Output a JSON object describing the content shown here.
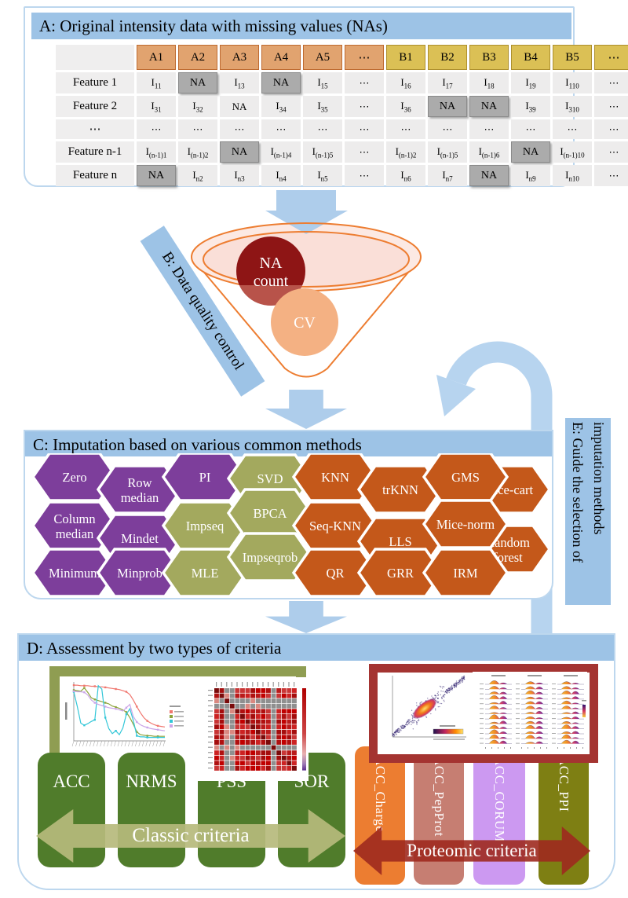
{
  "colors": {
    "banner_blue": "#9DC3E6",
    "box_border": "#BDD7EE",
    "block_arrow": "#AECDEB",
    "curve_arrow": "#B7D4EF",
    "funnel_outline": "#ED7D31",
    "funnel_fill": "#FADFD8",
    "na_circle": "#8E1515",
    "cv_circle": "#F4B183",
    "hex_purple": "#7D3E9B",
    "hex_olive": "#A3A95E",
    "hex_orange": "#C4581A",
    "header_a": "#E1A36F",
    "header_b": "#DBC055",
    "na_cell": "#ABABAB",
    "classic_box": "#507C2B",
    "classic_arrow": "#B6BA7C",
    "classic_frame": "#8F9D52",
    "proteomic_frame": "#A43431",
    "proteomic_arrow": "#9E2A1F"
  },
  "section_a": {
    "title": "A: Original intensity data with missing values (NAs)",
    "table": {
      "col_headers_a": [
        "A1",
        "A2",
        "A3",
        "A4",
        "A5",
        "⋯"
      ],
      "col_headers_b": [
        "B1",
        "B2",
        "B3",
        "B4",
        "B5",
        "⋯"
      ],
      "rows": [
        {
          "label": "Feature 1",
          "cells": [
            "I^11",
            "NA*",
            "I^13",
            "NA*",
            "I^15",
            "⋯",
            "I^16",
            "I^17",
            "I^18",
            "I^19",
            "I^110",
            "⋯"
          ]
        },
        {
          "label": "Feature 2",
          "cells": [
            "I^31",
            "I^32",
            "NA",
            "I^34",
            "I^35",
            "⋯",
            "I^36",
            "NA*",
            "NA*",
            "I^39",
            "I^310",
            "⋯"
          ]
        },
        {
          "label": "⋯",
          "cells": [
            "⋯",
            "⋯",
            "⋯",
            "⋯",
            "⋯",
            "⋯",
            "⋯",
            "⋯",
            "⋯",
            "⋯",
            "⋯",
            "⋯"
          ]
        },
        {
          "label": "Feature n-1",
          "cells": [
            "I^(n-1)1",
            "I^(n-1)2",
            "NA*",
            "I^(n-1)4",
            "I^(n-1)5",
            "⋯",
            "I^(n-1)2",
            "I^(n-1)5",
            "I^(n-1)6",
            "NA*",
            "I^(n-1)10",
            "⋯"
          ]
        },
        {
          "label": "Feature n",
          "cells": [
            "NA*",
            "I^n2",
            "I^n3",
            "I^n4",
            "I^n5",
            "⋯",
            "I^n6",
            "I^n7",
            "NA*",
            "I^n9",
            "I^n10",
            "⋯"
          ]
        }
      ]
    }
  },
  "section_b": {
    "label": "B: Data quality control",
    "na_lines": [
      "NA",
      "count"
    ],
    "cv_label": "CV"
  },
  "section_c": {
    "title": "C: Imputation based on various common methods",
    "hexagons": [
      {
        "label": "Zero",
        "group": "hex_purple"
      },
      {
        "label": "Column median",
        "group": "hex_purple"
      },
      {
        "label": "Minimum",
        "group": "hex_purple"
      },
      {
        "label": "Row median",
        "group": "hex_purple"
      },
      {
        "label": "Mindet",
        "group": "hex_purple"
      },
      {
        "label": "Minprob",
        "group": "hex_purple"
      },
      {
        "label": "PI",
        "group": "hex_purple"
      },
      {
        "label": "Impseq",
        "group": "hex_olive"
      },
      {
        "label": "MLE",
        "group": "hex_olive"
      },
      {
        "label": "SVD",
        "group": "hex_olive"
      },
      {
        "label": "BPCA",
        "group": "hex_olive"
      },
      {
        "label": "Impseqrob",
        "group": "hex_olive"
      },
      {
        "label": "KNN",
        "group": "hex_orange"
      },
      {
        "label": "Seq-KNN",
        "group": "hex_orange"
      },
      {
        "label": "QR",
        "group": "hex_orange"
      },
      {
        "label": "trKNN",
        "group": "hex_orange"
      },
      {
        "label": "LLS",
        "group": "hex_orange"
      },
      {
        "label": "GRR",
        "group": "hex_orange"
      },
      {
        "label": "Mice-cart",
        "group": "hex_orange"
      },
      {
        "label": "Random forest",
        "group": "hex_orange"
      },
      {
        "label": "GMS",
        "group": "hex_orange"
      },
      {
        "label": "Mice-norm",
        "group": "hex_orange"
      },
      {
        "label": "IRM",
        "group": "hex_orange"
      }
    ]
  },
  "section_d": {
    "title": "D: Assessment by two types of criteria",
    "classic": {
      "items": [
        "ACC",
        "NRMS",
        "PSS",
        "SOR"
      ],
      "arrow_label": "Classic criteria"
    },
    "proteomic": {
      "bars": [
        {
          "label": "ACC_Charge",
          "color": "#EC7D31"
        },
        {
          "label": "ACC_PepProt",
          "color": "#C67E72"
        },
        {
          "label": "ACC_CORUM",
          "color": "#CC99F1"
        },
        {
          "label": "ACC_PPI",
          "color": "#7E7F13"
        }
      ],
      "arrow_label": "Proteomic criteria"
    }
  },
  "section_e": {
    "label": "E: Guide the selection of imputation methods"
  }
}
